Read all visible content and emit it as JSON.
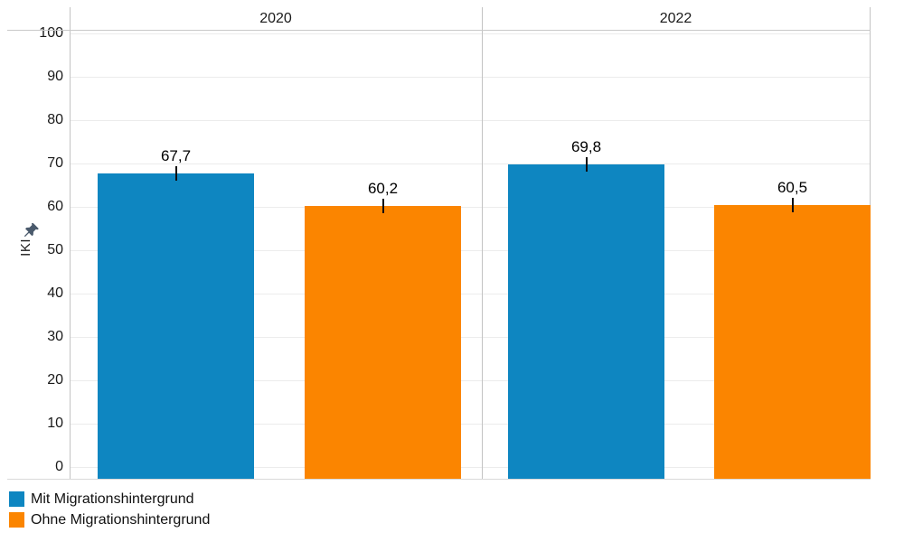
{
  "chart_data": {
    "type": "bar",
    "title": "",
    "ylabel": "IKI",
    "ylim": [
      0,
      100
    ],
    "yticks": [
      0,
      10,
      20,
      30,
      40,
      50,
      60,
      70,
      80,
      90,
      100
    ],
    "grid": true,
    "legend_position": "bottom-left",
    "decimal_separator": ",",
    "categories": [
      "2020",
      "2022"
    ],
    "series": [
      {
        "name": "Mit Migrationshintergrund",
        "color": "#0e86c1",
        "values": [
          67.7,
          69.8
        ],
        "value_labels": [
          "67,7",
          "69,8"
        ]
      },
      {
        "name": "Ohne Migrationshintergrund",
        "color": "#fb8500",
        "values": [
          60.2,
          60.5
        ],
        "value_labels": [
          "60,2",
          "60,5"
        ]
      }
    ],
    "error_bars": {
      "shown": true,
      "approx_halfheight_units": 1.7
    }
  },
  "icons": {
    "pin_color": "#4a5a6c"
  }
}
